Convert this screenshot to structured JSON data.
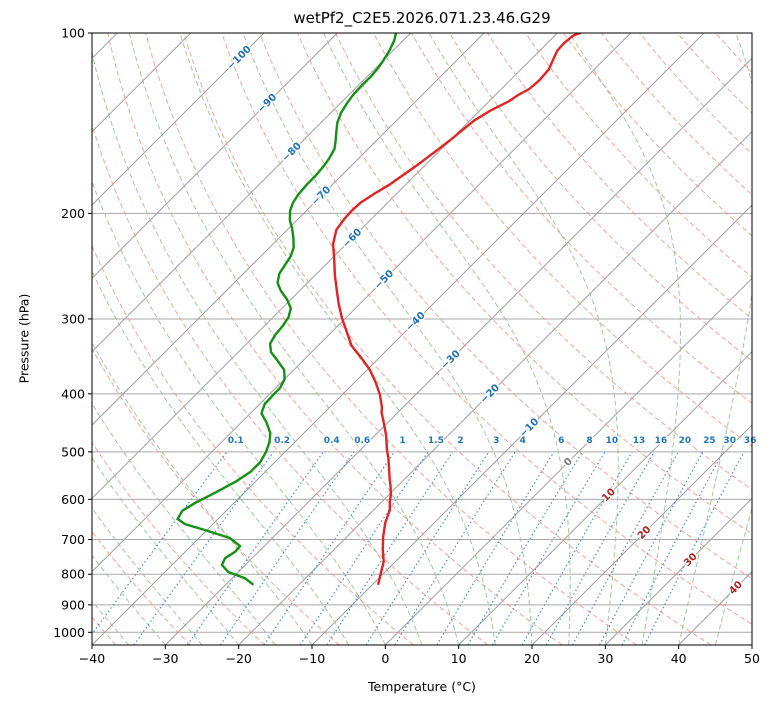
{
  "chart_data": {
    "type": "line",
    "subtype": "skewT-logP",
    "title": "wetPf2_C2E5.2026.071.23.46.G29",
    "xlabel": "Temperature (°C)",
    "ylabel": "Pressure (hPa)",
    "xlim": [
      -40,
      50
    ],
    "pressure_lim": [
      100,
      1050
    ],
    "skew_degrees": 45,
    "grid": true,
    "grid_color": "#a8a8a8",
    "x_ticks": [
      -40,
      -30,
      -20,
      -10,
      0,
      10,
      20,
      30,
      40,
      50
    ],
    "y_ticks": [
      100,
      200,
      300,
      400,
      500,
      600,
      700,
      800,
      900,
      1000
    ],
    "isotherms": {
      "start": -120,
      "end": 50,
      "step": 10,
      "color": "#9e9e9e",
      "label_colors": {
        "negative": "#2372b5",
        "zero": "#7a7a7a",
        "positive": "#b22222"
      },
      "labels": [
        {
          "value": -100,
          "p": 110
        },
        {
          "value": -90,
          "p": 131
        },
        {
          "value": -80,
          "p": 158
        },
        {
          "value": -70,
          "p": 187
        },
        {
          "value": -60,
          "p": 220
        },
        {
          "value": -50,
          "p": 258
        },
        {
          "value": -40,
          "p": 303
        },
        {
          "value": -30,
          "p": 351
        },
        {
          "value": -20,
          "p": 400
        },
        {
          "value": -10,
          "p": 456
        },
        {
          "value": 0,
          "p": 520
        },
        {
          "value": 10,
          "p": 590
        },
        {
          "value": 20,
          "p": 682
        },
        {
          "value": 30,
          "p": 757
        },
        {
          "value": 40,
          "p": 843
        }
      ]
    },
    "dry_adiabats": {
      "start": -40,
      "end": 200,
      "step": 10,
      "color": "#f0948b",
      "opacity": 0.85
    },
    "moist_adiabats": {
      "start": -40,
      "end": 45,
      "step": 5,
      "color": "#8fc08f",
      "opacity": 0.85
    },
    "mixing_ratio": {
      "values": [
        0.1,
        0.2,
        0.4,
        0.6,
        1,
        1.5,
        2,
        3,
        4,
        6,
        8,
        10,
        13,
        16,
        20,
        25,
        30,
        36
      ],
      "color": "#3b82c4",
      "opacity": 0.9,
      "label_color": "#1f77b4",
      "label_pressure": 478,
      "p_range": [
        500,
        1050
      ]
    },
    "series": [
      {
        "name": "temperature",
        "color": "#e02423",
        "width": 2.4,
        "points_p_t": [
          [
            830,
            -9.3
          ],
          [
            800,
            -10.3
          ],
          [
            762,
            -11.6
          ],
          [
            729,
            -13.3
          ],
          [
            694,
            -15.0
          ],
          [
            656,
            -16.7
          ],
          [
            625,
            -17.8
          ],
          [
            606,
            -18.9
          ],
          [
            590,
            -19.7
          ],
          [
            571,
            -20.9
          ],
          [
            557,
            -21.9
          ],
          [
            531,
            -23.7
          ],
          [
            513,
            -25.0
          ],
          [
            496,
            -26.4
          ],
          [
            469,
            -28.5
          ],
          [
            442,
            -31.0
          ],
          [
            430,
            -32.2
          ],
          [
            421,
            -32.9
          ],
          [
            410,
            -34.0
          ],
          [
            402,
            -34.8
          ],
          [
            383,
            -37.1
          ],
          [
            365,
            -39.6
          ],
          [
            348,
            -42.5
          ],
          [
            332,
            -45.5
          ],
          [
            315,
            -48.0
          ],
          [
            299,
            -50.5
          ],
          [
            283,
            -52.9
          ],
          [
            268,
            -55.1
          ],
          [
            253,
            -57.4
          ],
          [
            239,
            -59.5
          ],
          [
            225,
            -61.8
          ],
          [
            213,
            -63.3
          ],
          [
            204,
            -63.7
          ],
          [
            198,
            -63.8
          ],
          [
            192,
            -63.7
          ],
          [
            185,
            -63.0
          ],
          [
            179,
            -62.2
          ],
          [
            172,
            -61.6
          ],
          [
            165,
            -61.0
          ],
          [
            158,
            -60.5
          ],
          [
            151,
            -60.0
          ],
          [
            145,
            -59.7
          ],
          [
            140,
            -59.4
          ],
          [
            135,
            -58.6
          ],
          [
            130,
            -57.3
          ],
          [
            127,
            -56.9
          ],
          [
            124,
            -56.2
          ],
          [
            120,
            -56.0
          ],
          [
            115,
            -56.2
          ],
          [
            111,
            -56.9
          ],
          [
            107,
            -57.6
          ],
          [
            104,
            -57.7
          ],
          [
            101,
            -57.5
          ],
          [
            100,
            -56.9
          ]
        ]
      },
      {
        "name": "dewpoint",
        "color": "#149114",
        "width": 2.4,
        "points_p_t": [
          [
            831,
            -26.4
          ],
          [
            812,
            -28.3
          ],
          [
            793,
            -31.4
          ],
          [
            772,
            -33.2
          ],
          [
            752,
            -33.7
          ],
          [
            734,
            -33.2
          ],
          [
            718,
            -33.3
          ],
          [
            696,
            -35.8
          ],
          [
            675,
            -40.3
          ],
          [
            660,
            -43.8
          ],
          [
            647,
            -45.5
          ],
          [
            627,
            -46.0
          ],
          [
            608,
            -45.3
          ],
          [
            585,
            -44.0
          ],
          [
            561,
            -42.7
          ],
          [
            540,
            -42.0
          ],
          [
            520,
            -42.0
          ],
          [
            500,
            -42.6
          ],
          [
            481,
            -43.5
          ],
          [
            465,
            -44.6
          ],
          [
            447,
            -46.5
          ],
          [
            431,
            -48.5
          ],
          [
            416,
            -49.3
          ],
          [
            403,
            -49.4
          ],
          [
            391,
            -49.4
          ],
          [
            378,
            -50.0
          ],
          [
            365,
            -51.3
          ],
          [
            352,
            -53.5
          ],
          [
            341,
            -55.5
          ],
          [
            330,
            -56.8
          ],
          [
            319,
            -57.3
          ],
          [
            308,
            -57.5
          ],
          [
            298,
            -57.9
          ],
          [
            288,
            -58.8
          ],
          [
            278,
            -60.6
          ],
          [
            269,
            -62.6
          ],
          [
            261,
            -64.1
          ],
          [
            252,
            -65.1
          ],
          [
            244,
            -65.5
          ],
          [
            236,
            -65.9
          ],
          [
            228,
            -66.7
          ],
          [
            220,
            -68.0
          ],
          [
            212,
            -69.5
          ],
          [
            205,
            -71.0
          ],
          [
            198,
            -72.2
          ],
          [
            192,
            -72.9
          ],
          [
            186,
            -73.3
          ],
          [
            179,
            -73.5
          ],
          [
            173,
            -73.5
          ],
          [
            167,
            -73.7
          ],
          [
            162,
            -74.0
          ],
          [
            156,
            -74.6
          ],
          [
            151,
            -75.6
          ],
          [
            146,
            -76.7
          ],
          [
            141,
            -77.8
          ],
          [
            136,
            -78.6
          ],
          [
            131,
            -79.1
          ],
          [
            127,
            -79.4
          ],
          [
            123,
            -79.5
          ],
          [
            118,
            -79.5
          ],
          [
            114,
            -79.7
          ],
          [
            111,
            -80.0
          ],
          [
            107,
            -80.5
          ],
          [
            103,
            -81.2
          ],
          [
            100,
            -82.0
          ]
        ]
      }
    ]
  }
}
